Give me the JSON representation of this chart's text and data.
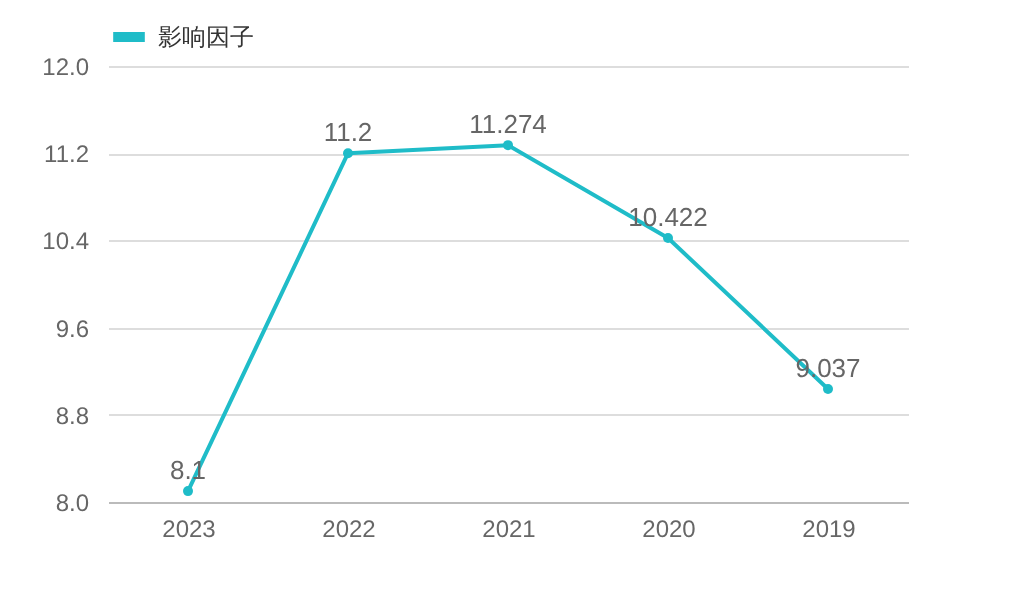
{
  "chart_data": {
    "type": "line",
    "categories": [
      "2023",
      "2022",
      "2021",
      "2020",
      "2019"
    ],
    "series": [
      {
        "name": "影响因子",
        "color": "#1fbcc8",
        "values": [
          8.1,
          11.2,
          11.274,
          10.422,
          9.037
        ]
      }
    ],
    "ylim": [
      8,
      12
    ],
    "yticks": [
      {
        "value": 8,
        "label": "8.0"
      },
      {
        "value": 8.8,
        "label": "8.8"
      },
      {
        "value": 9.6,
        "label": "9.6"
      },
      {
        "value": 10.4,
        "label": "10.4"
      },
      {
        "value": 11.2,
        "label": "11.2"
      },
      {
        "value": 12,
        "label": "12.0"
      }
    ],
    "grid": "y",
    "legend": "top left",
    "marker": "circle",
    "data_labels": true
  }
}
